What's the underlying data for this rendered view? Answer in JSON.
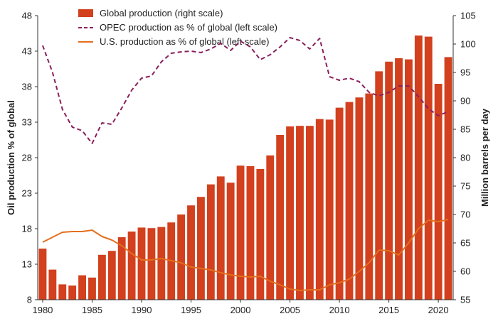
{
  "chart_data": {
    "type": "bar",
    "xlabel": "",
    "ylabel_left": "Oil production % of global",
    "ylabel_right": "Million barrels per day",
    "years": [
      1980,
      1981,
      1982,
      1983,
      1984,
      1985,
      1986,
      1987,
      1988,
      1989,
      1990,
      1991,
      1992,
      1993,
      1994,
      1995,
      1996,
      1997,
      1998,
      1999,
      2000,
      2001,
      2002,
      2003,
      2004,
      2005,
      2006,
      2007,
      2008,
      2009,
      2010,
      2011,
      2012,
      2013,
      2014,
      2015,
      2016,
      2017,
      2018,
      2019,
      2020,
      2021
    ],
    "x_ticks": [
      1980,
      1985,
      1990,
      1995,
      2000,
      2005,
      2010,
      2015,
      2020
    ],
    "left_axis": {
      "min": 8,
      "max": 48,
      "ticks": [
        8,
        13,
        18,
        23,
        28,
        33,
        38,
        43,
        48
      ]
    },
    "right_axis": {
      "min": 55,
      "max": 105,
      "ticks": [
        55,
        60,
        65,
        70,
        75,
        80,
        85,
        90,
        95,
        100,
        105
      ]
    },
    "series": [
      {
        "name": "Global production (right scale)",
        "type": "bar",
        "axis": "right",
        "color": "#d2401e",
        "values": [
          64.0,
          60.3,
          57.7,
          57.5,
          59.3,
          58.9,
          62.9,
          63.6,
          66.0,
          67.0,
          67.7,
          67.6,
          67.8,
          68.6,
          70.0,
          71.6,
          73.1,
          75.3,
          76.7,
          75.6,
          78.6,
          78.5,
          78.0,
          80.4,
          84.0,
          85.5,
          85.6,
          85.6,
          86.8,
          86.7,
          88.8,
          89.8,
          90.6,
          91.3,
          95.2,
          96.9,
          97.5,
          97.3,
          101.5,
          101.3,
          93.0,
          97.7
        ]
      },
      {
        "name": "OPEC production as % of global (left scale)",
        "type": "line",
        "axis": "left",
        "color": "#8a1f5c",
        "dashed": true,
        "values": [
          43.8,
          40.0,
          34.8,
          32.3,
          31.8,
          30.0,
          32.9,
          32.7,
          35.0,
          37.5,
          39.2,
          39.5,
          41.5,
          42.7,
          42.9,
          43.0,
          42.8,
          43.3,
          44.1,
          43.1,
          44.4,
          43.6,
          41.8,
          42.5,
          43.6,
          44.9,
          44.5,
          43.3,
          44.8,
          39.4,
          38.9,
          39.2,
          38.7,
          37.2,
          36.7,
          37.2,
          38.1,
          38.1,
          36.6,
          34.9,
          33.9,
          34.5
        ]
      },
      {
        "name": "U.S. production as % of global (left scale)",
        "type": "line",
        "axis": "left",
        "color": "#e36f1e",
        "dashed": false,
        "values": [
          16.1,
          16.8,
          17.5,
          17.6,
          17.6,
          17.8,
          16.9,
          16.4,
          15.6,
          14.5,
          13.6,
          13.6,
          13.8,
          13.5,
          13.2,
          12.6,
          12.4,
          12.2,
          11.8,
          11.5,
          11.3,
          11.2,
          11.3,
          10.6,
          10.1,
          9.5,
          9.3,
          9.4,
          9.4,
          10.1,
          10.4,
          10.9,
          12.0,
          13.2,
          15.0,
          14.9,
          14.3,
          16.0,
          18.0,
          19.2,
          19.0,
          19.3
        ]
      }
    ],
    "legend": "top-left"
  }
}
